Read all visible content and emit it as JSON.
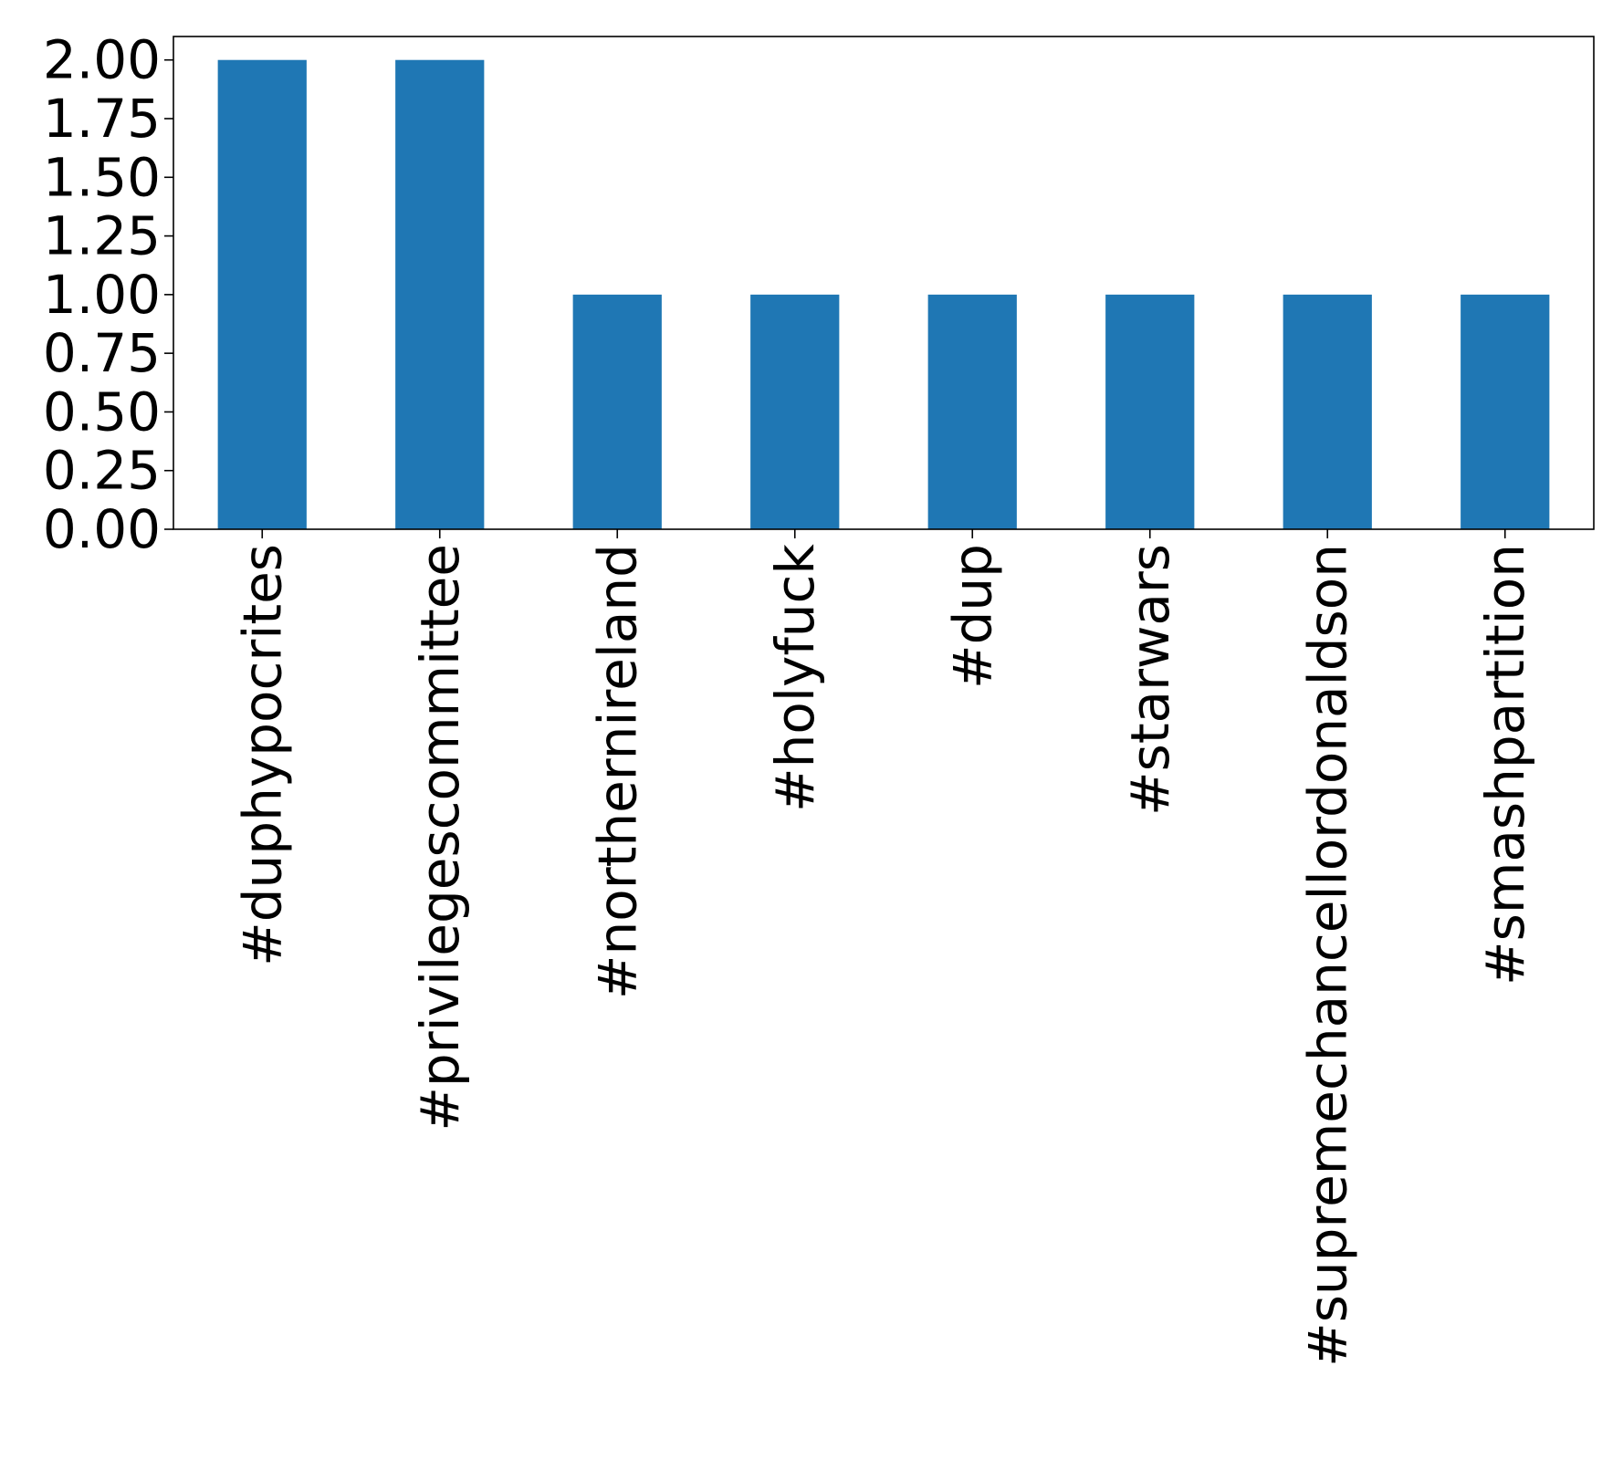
{
  "chart_data": {
    "type": "bar",
    "title": "",
    "xlabel": "",
    "ylabel": "",
    "categories": [
      "#duphypocrites",
      "#privilegescommittee",
      "#northernireland",
      "#holyfuck",
      "#dup",
      "#starwars",
      "#supremechancellordonaldson",
      "#smashpartition"
    ],
    "values": [
      2,
      2,
      1,
      1,
      1,
      1,
      1,
      1
    ],
    "ylim": [
      0,
      2.1
    ],
    "yticks": [
      "0.00",
      "0.25",
      "0.50",
      "0.75",
      "1.00",
      "1.25",
      "1.50",
      "1.75",
      "2.00"
    ],
    "grid": false,
    "legend": "none",
    "bar_color": "#1f77b4"
  }
}
